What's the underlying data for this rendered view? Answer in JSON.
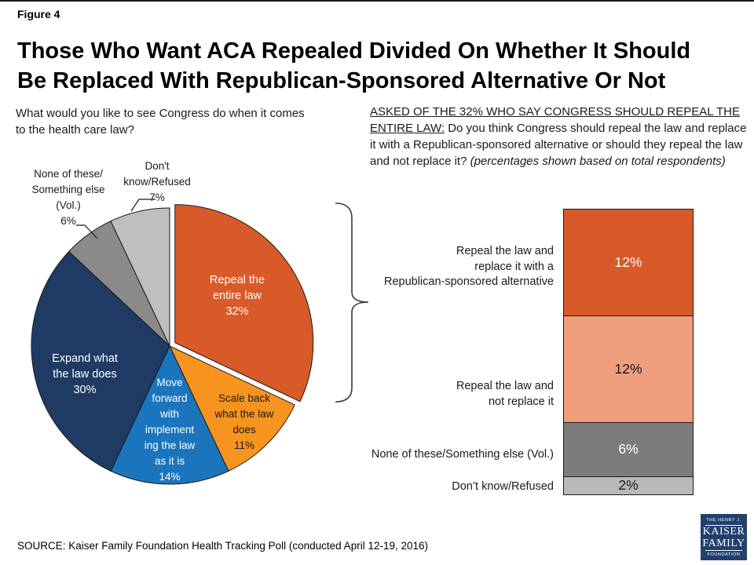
{
  "figure_label": "Figure 4",
  "title_lines": [
    "Those Who Want ACA Repealed Divided On Whether It Should",
    "Be Replaced With Republican-Sponsored Alternative Or Not"
  ],
  "left_question_lines": [
    "What would you like to see Congress do when it comes",
    "to the health care law?"
  ],
  "right_question": {
    "underlined": "ASKED OF THE 32% WHO SAY CONGRESS SHOULD REPEAL THE ENTIRE LAW:",
    "normal": " Do you think Congress should repeal the law and replace it with a Republican-sponsored alternative or should they repeal the law and not replace it? ",
    "italic": "(percentages shown based on total respondents)"
  },
  "source": "SOURCE: Kaiser Family Foundation Health Tracking Poll (conducted April 12-19, 2016)",
  "logo": {
    "line1": "THE HENRY J.",
    "line2": "KAISER",
    "line3": "FAMILY",
    "line4": "FOUNDATION"
  },
  "chart_data": [
    {
      "type": "pie",
      "title": "What would you like to see Congress do when it comes to the health care law?",
      "start_angle_deg": 0,
      "direction": "clockwise",
      "slices": [
        {
          "label": "Repeal the entire law",
          "value": 32,
          "color": "#D85A28",
          "text_color": "#FFFFFF",
          "exploded": true,
          "label_lines": [
            "Repeal the",
            "entire law",
            "32%"
          ]
        },
        {
          "label": "Scale back what the law does",
          "value": 11,
          "color": "#F79420",
          "text_color": "#1A1A1A",
          "exploded": false,
          "label_lines": [
            "Scale back",
            "what the law",
            "does",
            "11%"
          ]
        },
        {
          "label": "Move forward with implementing the law as it is",
          "value": 14,
          "color": "#1B75BC",
          "text_color": "#FFFFFF",
          "exploded": false,
          "label_lines": [
            "Move",
            "forward",
            "with",
            "implement",
            "ing the law",
            "as it is",
            "14%"
          ]
        },
        {
          "label": "Expand what the law does",
          "value": 30,
          "color": "#1F3B63",
          "text_color": "#FFFFFF",
          "exploded": false,
          "label_lines": [
            "Expand what",
            "the law does",
            "30%"
          ]
        },
        {
          "label": "None of these/Something else (Vol.)",
          "value": 6,
          "color": "#8A8A8A",
          "text_color": "#1A1A1A",
          "exploded": false,
          "label_lines": [
            "None of these/",
            "Something else",
            "(Vol.)",
            "6%"
          ]
        },
        {
          "label": "Don't know/Refused",
          "value": 7,
          "color": "#BFBFBF",
          "text_color": "#1A1A1A",
          "exploded": false,
          "label_lines": [
            "Don't",
            "know/Refused",
            "7%"
          ]
        }
      ]
    },
    {
      "type": "stacked-bar",
      "title": "ASKED OF THE 32% WHO SAY CONGRESS SHOULD REPEAL THE ENTIRE LAW (percentages shown based on total respondents)",
      "bar_total": 32,
      "segments": [
        {
          "label": "Repeal the law and replace it with a Republican-sponsored alternative",
          "label_lines": [
            "Repeal the law and",
            "replace it with a",
            "Republican-sponsored alternative"
          ],
          "value": 12,
          "display": "12%",
          "color": "#D85A28",
          "text_color": "#FFFFFF"
        },
        {
          "label": "Repeal the law and not replace it",
          "label_lines": [
            "Repeal the law and",
            "not replace it"
          ],
          "value": 12,
          "display": "12%",
          "color": "#EE9D7D",
          "text_color": "#1A1A1A"
        },
        {
          "label": "None of these/Something else (Vol.)",
          "label_lines": [
            "None of these/Something else (Vol.)"
          ],
          "value": 6,
          "display": "6%",
          "color": "#7C7C7C",
          "text_color": "#FFFFFF"
        },
        {
          "label": "Don’t know/Refused",
          "label_lines": [
            "Don’t know/Refused"
          ],
          "value": 2,
          "display": "2%",
          "color": "#B9B9B9",
          "text_color": "#1A1A1A"
        }
      ]
    }
  ]
}
